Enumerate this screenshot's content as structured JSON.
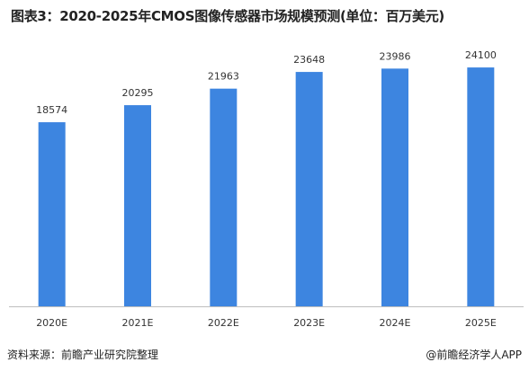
{
  "title": "图表3：2020-2025年CMOS图像传感器市场规模预测(单位：百万美元)",
  "source": "资料来源：前瞻产业研究院整理",
  "credit": "@前瞻经济学人APP",
  "colors": {
    "bar": "#3d85e0",
    "axis": "#bfbfbf",
    "text": "#333333"
  },
  "chart_data": {
    "type": "bar",
    "categories": [
      "2020E",
      "2021E",
      "2022E",
      "2023E",
      "2024E",
      "2025E"
    ],
    "values": [
      18574,
      20295,
      21963,
      23648,
      23986,
      24100
    ],
    "ylim": [
      0,
      30000
    ],
    "grid": false,
    "data_labels": true
  }
}
